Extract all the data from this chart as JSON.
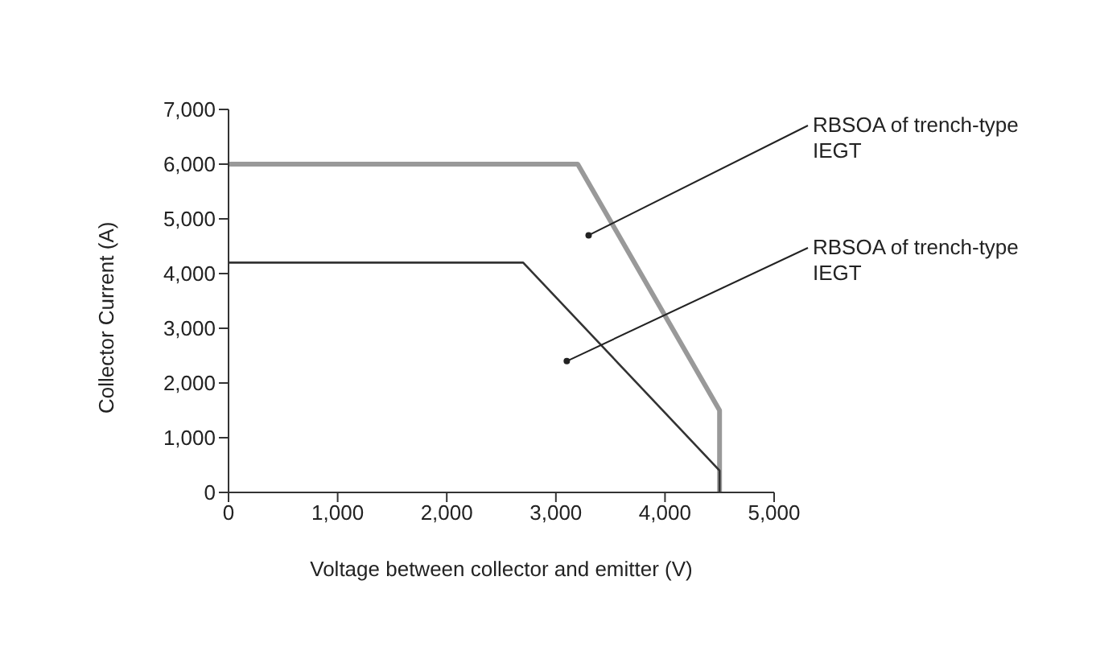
{
  "chart_data": {
    "type": "line",
    "xlabel": "Voltage between collector and emitter (V)",
    "ylabel": "Collector Current (A)",
    "xlim": [
      0,
      5000
    ],
    "xticks": [
      0,
      {
        "value": 1000,
        "label": "1,000"
      },
      {
        "value": 2000,
        "label": "2,000"
      },
      {
        "value": 3000,
        "label": "3,000"
      },
      {
        "value": 4000,
        "label": "4,000"
      },
      {
        "value": 5000,
        "label": "5,000"
      }
    ],
    "ylim": [
      0,
      7000
    ],
    "yticks": [
      0,
      {
        "value": 1000,
        "label": "1,000"
      },
      {
        "value": 2000,
        "label": "2,000"
      },
      {
        "value": 3000,
        "label": "3,000"
      },
      {
        "value": 4000,
        "label": "4,000"
      },
      {
        "value": 5000,
        "label": "5,000"
      },
      {
        "value": 6000,
        "label": "6,000"
      },
      {
        "value": 7000,
        "label": "7,000"
      }
    ],
    "grid": false,
    "legend": false,
    "marker": "none",
    "line_style": "solid",
    "series": [
      {
        "color": "#999999",
        "x": [
          0,
          3200,
          4500,
          4500
        ],
        "values": [
          6000,
          6000,
          1500,
          0
        ]
      },
      {
        "color": "#333333",
        "x": [
          0,
          2700,
          4500,
          4500
        ],
        "values": [
          4200,
          4200,
          400,
          0
        ]
      }
    ],
    "annotations": [
      {
        "text": "RBSOA of trench-type IEGT",
        "x": 3300,
        "y": 4700
      },
      {
        "text": "RBSOA of trench-type IEGT",
        "x": 3100,
        "y": 2400
      }
    ]
  }
}
